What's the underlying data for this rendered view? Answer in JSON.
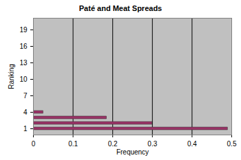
{
  "chart_data": {
    "type": "bar",
    "orientation": "horizontal",
    "title": "Paté and Meat Spreads",
    "x_label": "Frequency",
    "y_label": "Ranking",
    "categories": [
      "1",
      null,
      null,
      "4",
      null,
      null,
      "7",
      null,
      null,
      "10",
      null,
      null,
      "13",
      null,
      null,
      "16",
      null,
      null,
      "19",
      null
    ],
    "values": [
      0.49,
      0.3,
      0.185,
      0.025,
      0,
      0,
      0,
      0,
      0,
      0,
      0,
      0,
      0,
      0,
      0,
      0,
      0,
      0,
      0,
      0
    ],
    "color": "#993366",
    "xlim": [
      0,
      0.5
    ],
    "xticks": [
      0,
      0.1,
      0.2,
      0.3,
      0.4,
      0.5
    ],
    "grid": true
  }
}
